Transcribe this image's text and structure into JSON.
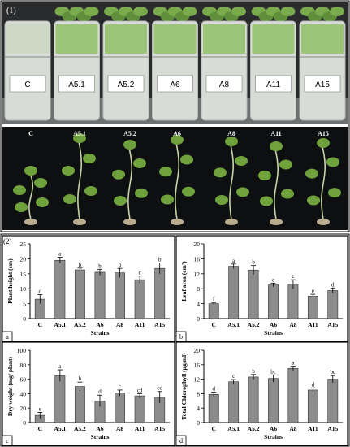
{
  "figure": {
    "part1_label": "(1)",
    "part2_label": "(2)"
  },
  "photo_top": {
    "labels": [
      "C",
      "A5.1",
      "A5.2",
      "A6",
      "A8",
      "A11",
      "A15"
    ]
  },
  "photo_bottom": {
    "labels": [
      "C",
      "A5.1",
      "A5.2",
      "A6",
      "A8",
      "A11",
      "A15"
    ]
  },
  "colors": {
    "bar": "#8c8c8c",
    "dark_bg": "#0d0f10",
    "border": "#000000"
  },
  "chart_data": [
    {
      "type": "bar",
      "panel": "a",
      "categories": [
        "C",
        "A5.1",
        "A5.2",
        "A6",
        "A8",
        "A11",
        "A15"
      ],
      "values": [
        6.5,
        19.5,
        16.3,
        15.5,
        15.3,
        13,
        16.8
      ],
      "errors": [
        1.5,
        1.0,
        0.6,
        1.0,
        1.5,
        1.2,
        1.8
      ],
      "letters": [
        "d",
        "a",
        "b",
        "b",
        "b",
        "c",
        "b"
      ],
      "xlabel": "Strains",
      "ylabel": "Plant height (cm)",
      "ylim": [
        0,
        25
      ],
      "yticks": [
        0,
        5,
        10,
        15,
        20,
        25
      ]
    },
    {
      "type": "bar",
      "panel": "b",
      "categories": [
        "C",
        "A5.1",
        "A5.2",
        "A6",
        "A8",
        "A11",
        "A15"
      ],
      "values": [
        4,
        14,
        13,
        9,
        9.2,
        6,
        7.5
      ],
      "errors": [
        0.3,
        0.6,
        1.2,
        0.5,
        1.2,
        0.5,
        0.7
      ],
      "letters": [
        "f",
        "a",
        "b",
        "c",
        "c",
        "e",
        "d"
      ],
      "xlabel": "Strains",
      "ylabel": "Leaf area (cm²)",
      "ylim": [
        0,
        20
      ],
      "yticks": [
        0,
        4,
        8,
        12,
        16,
        20
      ]
    },
    {
      "type": "bar",
      "panel": "c",
      "categories": [
        "C",
        "A5.1",
        "A5.2",
        "A6",
        "A8",
        "A11",
        "A15"
      ],
      "values": [
        10,
        65,
        50,
        30,
        41,
        37,
        35
      ],
      "errors": [
        4,
        8,
        6,
        8,
        4,
        3,
        8
      ],
      "letters": [
        "e",
        "a",
        "b",
        "d",
        "c",
        "cd",
        "cd"
      ],
      "xlabel": "Strains",
      "ylabel": "Dry weight (mg/ plant)",
      "ylim": [
        0,
        100
      ],
      "yticks": [
        0,
        20,
        40,
        60,
        80,
        100
      ]
    },
    {
      "type": "bar",
      "panel": "d",
      "categories": [
        "C",
        "A5.1",
        "A5.2",
        "A6",
        "A8",
        "A11",
        "A15"
      ],
      "values": [
        7.8,
        11.3,
        12.6,
        12.2,
        15,
        9,
        12
      ],
      "errors": [
        0.6,
        0.6,
        0.7,
        1.0,
        0.6,
        0.6,
        1.0
      ],
      "letters": [
        "d",
        "c",
        "b",
        "bc",
        "a",
        "d",
        "bc"
      ],
      "xlabel": "Strains",
      "ylabel": "Total Chlorophyll (µg/ml)",
      "ylim": [
        0,
        20
      ],
      "yticks": [
        0,
        4,
        8,
        12,
        16,
        20
      ]
    }
  ]
}
